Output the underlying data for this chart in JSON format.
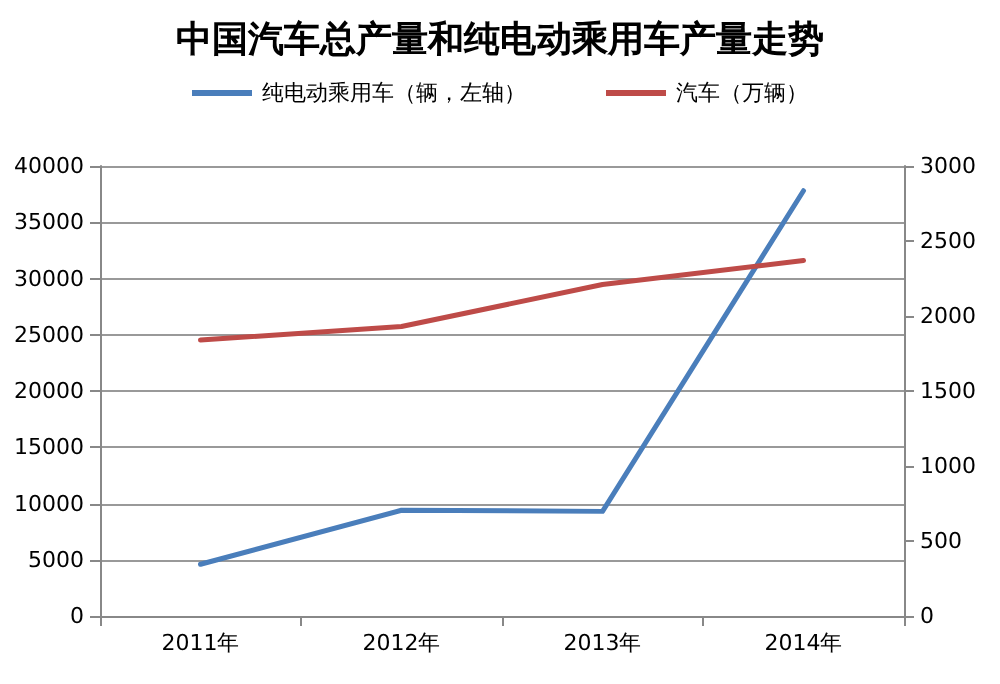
{
  "chart_data": {
    "type": "line",
    "title": "中国汽车总产量和纯电动乘用车产量走势",
    "categories": [
      "2011年",
      "2012年",
      "2013年",
      "2014年"
    ],
    "series": [
      {
        "name": "纯电动乘用车（辆，左轴）",
        "color": "#4a7ebb",
        "values": [
          4600,
          9400,
          9300,
          37800
        ]
      },
      {
        "name": "汽车（万辆）",
        "color": "#be4b48",
        "axis": "y2",
        "values": [
          1840,
          1930,
          2210,
          2370
        ]
      }
    ],
    "ylim": [
      0,
      40000
    ],
    "yticks": [
      0,
      5000,
      10000,
      15000,
      20000,
      25000,
      30000,
      35000,
      40000
    ],
    "y2lim": [
      0,
      3000
    ],
    "y2ticks": [
      0,
      500,
      1000,
      1500,
      2000,
      2500,
      3000
    ],
    "grid": "y",
    "legend": "top",
    "marker": "none",
    "line_style": "solid"
  }
}
